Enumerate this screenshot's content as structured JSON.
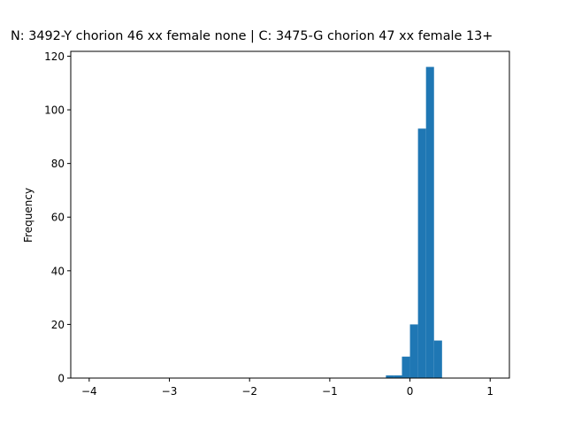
{
  "chart_data": {
    "type": "bar",
    "title": "N: 3492-Y chorion 46 xx female none | C: 3475-G chorion 47 xx female 13+",
    "xlabel": "",
    "ylabel": "Frequency",
    "xlim": [
      -4.23,
      1.24
    ],
    "ylim": [
      0,
      121.8
    ],
    "xticks": [
      -4,
      -3,
      -2,
      -1,
      0,
      1
    ],
    "xtick_labels": [
      "−4",
      "−3",
      "−2",
      "−1",
      "0",
      "1"
    ],
    "yticks": [
      0,
      20,
      40,
      60,
      80,
      100,
      120
    ],
    "bar_color": "#1f77b4",
    "grid": false,
    "bins": [
      {
        "x0": -0.3,
        "x1": -0.2,
        "count": 1
      },
      {
        "x0": -0.2,
        "x1": -0.1,
        "count": 1
      },
      {
        "x0": -0.1,
        "x1": 0.0,
        "count": 8
      },
      {
        "x0": 0.0,
        "x1": 0.1,
        "count": 20
      },
      {
        "x0": 0.1,
        "x1": 0.2,
        "count": 93
      },
      {
        "x0": 0.2,
        "x1": 0.3,
        "count": 116
      },
      {
        "x0": 0.3,
        "x1": 0.4,
        "count": 14
      }
    ]
  }
}
